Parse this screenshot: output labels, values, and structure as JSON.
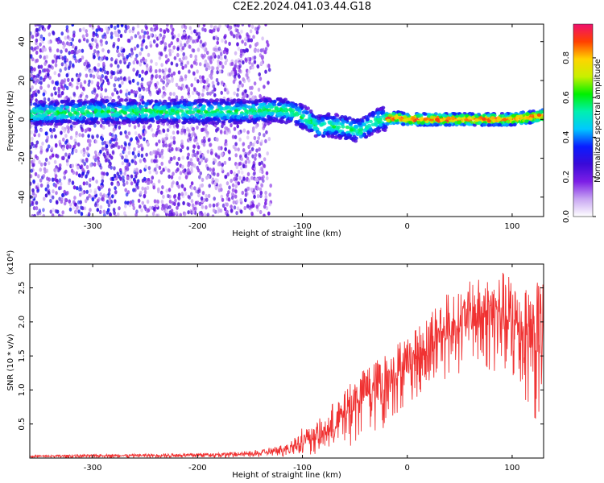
{
  "title": "C2E2.2024.041.03.44.G18",
  "chart_data": [
    {
      "type": "heatmap",
      "xlabel": "Height of straight line (km)",
      "ylabel": "Frequency (Hz)",
      "xlim": [
        -360,
        130
      ],
      "ylim": [
        -50,
        49
      ],
      "x_ticks": [
        -300,
        -200,
        -100,
        0,
        100
      ],
      "x_tick_labels": [
        "-300",
        "-200",
        "-100",
        "0",
        "100"
      ],
      "y_ticks": [
        -40,
        -20,
        0,
        20,
        40
      ],
      "y_tick_labels": [
        "-40",
        "-20",
        "0",
        "20",
        "40"
      ],
      "colorbar": {
        "label": "Normalized spectral amplitude",
        "range": [
          0,
          0.97
        ],
        "ticks": [
          0.0,
          0.2,
          0.4,
          0.6,
          0.8
        ],
        "tick_labels": [
          "0.0",
          "0.2",
          "0.4",
          "0.6",
          "0.8"
        ],
        "colormap": [
          "#ffffff",
          "#c8a6f2",
          "#7c1ee6",
          "#3a0ad8",
          "#0a1cff",
          "#00c8ff",
          "#00f0b0",
          "#00f000",
          "#c8f000",
          "#ffd400",
          "#ff4000",
          "#f0106e"
        ]
      },
      "ridge": {
        "x": [
          -360,
          -300,
          -250,
          -200,
          -150,
          -130,
          -110,
          -95,
          -85,
          -75,
          -60,
          -45,
          -35,
          -25,
          -10,
          0,
          30,
          60,
          100,
          130
        ],
        "frequency_hz": [
          3,
          4,
          4,
          4,
          4,
          5,
          4,
          0,
          -4,
          -3,
          -4,
          -6,
          -2,
          0,
          1,
          0,
          0,
          0,
          0,
          2
        ]
      }
    },
    {
      "type": "line",
      "xlabel": "Height of straight line (km)",
      "ylabel": "SNR (10 * v/v)",
      "y_multiplier": "(x10⁴)",
      "xlim": [
        -360,
        130
      ],
      "ylim": [
        0,
        2.85
      ],
      "x_ticks": [
        -300,
        -200,
        -100,
        0,
        100
      ],
      "x_tick_labels": [
        "-300",
        "-200",
        "-100",
        "0",
        "100"
      ],
      "y_ticks": [
        0.5,
        1.0,
        1.5,
        2.0,
        2.5
      ],
      "y_tick_labels": [
        "0.5",
        "1.0",
        "1.5",
        "2.0",
        "2.5"
      ],
      "color": "#f03232",
      "series": [
        {
          "x": [
            -360,
            -300,
            -250,
            -200,
            -150,
            -120,
            -110,
            -100,
            -90,
            -80,
            -70,
            -60,
            -50,
            -40,
            -30,
            -20,
            -10,
            0,
            10,
            20,
            30,
            40,
            50,
            60,
            70,
            80,
            90,
            100,
            110,
            120,
            130
          ],
          "y": [
            0.02,
            0.03,
            0.03,
            0.04,
            0.05,
            0.08,
            0.15,
            0.2,
            0.25,
            0.3,
            0.4,
            0.55,
            0.7,
            0.85,
            0.9,
            1.0,
            1.15,
            1.25,
            1.35,
            1.5,
            1.65,
            1.75,
            1.85,
            1.9,
            1.95,
            1.95,
            1.9,
            1.8,
            1.7,
            1.55,
            1.5
          ],
          "y_max": [
            0.04,
            0.05,
            0.06,
            0.07,
            0.1,
            0.2,
            0.3,
            0.45,
            0.55,
            0.6,
            0.85,
            1.0,
            1.2,
            1.3,
            1.5,
            1.55,
            1.75,
            1.85,
            2.05,
            2.2,
            2.35,
            2.45,
            2.5,
            2.6,
            2.65,
            2.7,
            2.75,
            2.8,
            2.7,
            2.6,
            2.8
          ],
          "y_min": [
            0.0,
            0.0,
            0.0,
            0.01,
            0.01,
            0.02,
            0.03,
            0.05,
            0.05,
            0.08,
            0.1,
            0.15,
            0.2,
            0.3,
            0.35,
            0.45,
            0.65,
            0.8,
            0.9,
            1.0,
            1.1,
            1.2,
            1.25,
            1.35,
            1.3,
            1.25,
            1.2,
            1.1,
            0.95,
            0.6,
            0.3
          ]
        }
      ]
    }
  ]
}
